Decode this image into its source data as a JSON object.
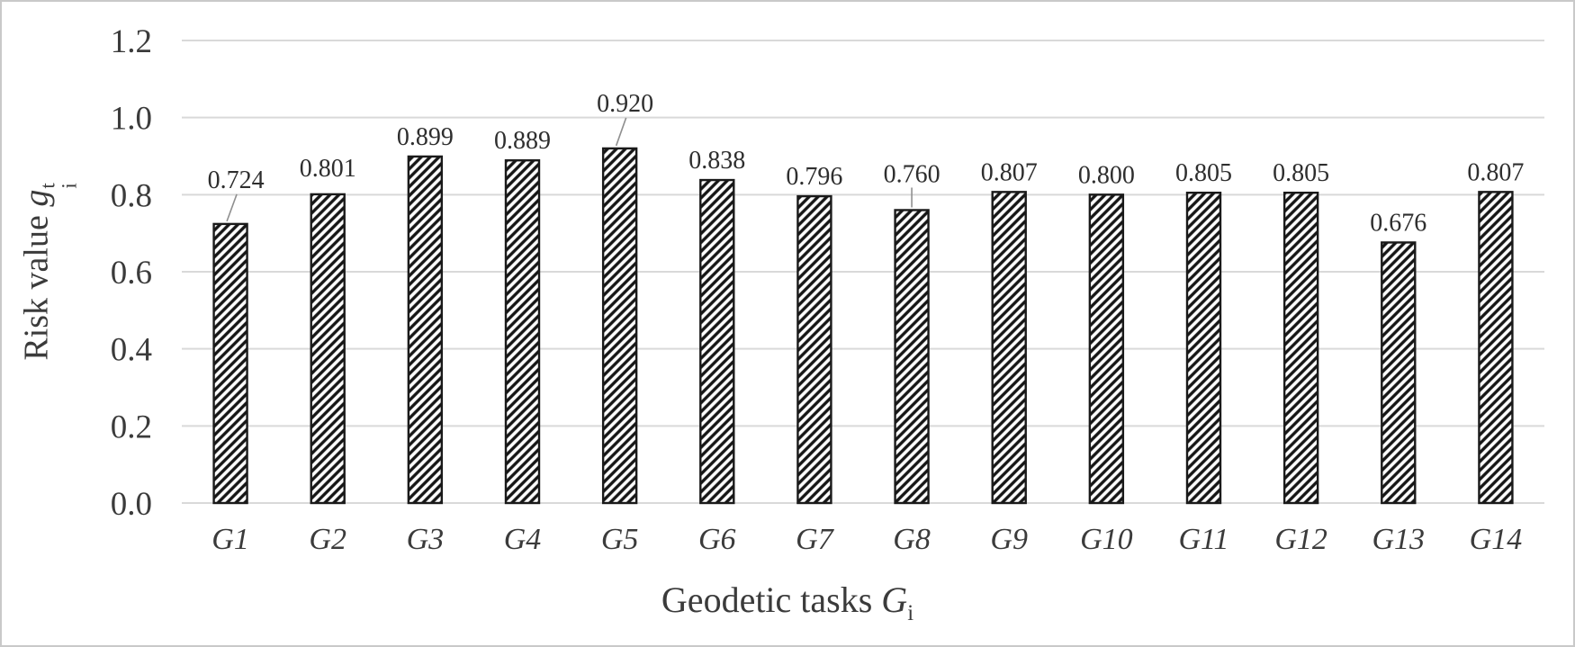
{
  "figure": {
    "background": "#ffffff",
    "border_color": "#c9c9c9",
    "gridline_color": "#d9d9d9",
    "axis_text_color": "#3b3b3b",
    "value_label_color": "#2e2e2e",
    "bar_outline_color": "#1a1a1a",
    "hatch_color": "#161616",
    "bar_fill_color": "#ffffff",
    "leader_line_color": "#8f8f8f"
  },
  "y_axis": {
    "title": {
      "prefix": "Risk value ",
      "variable": "g",
      "superscript": "t",
      "subscript": "i"
    },
    "tick_labels": [
      "1.2",
      "1.0",
      "0.8",
      "0.6",
      "0.4",
      "0.2",
      "0.0"
    ]
  },
  "x_axis": {
    "title": {
      "prefix": "Geodetic tasks ",
      "variable": "G",
      "subscript": "i"
    }
  },
  "chart_data": {
    "type": "bar",
    "title": "",
    "xlabel": "Geodetic tasks Gi",
    "ylabel": "Risk value gi^t",
    "categories": [
      "G1",
      "G2",
      "G3",
      "G4",
      "G5",
      "G6",
      "G7",
      "G8",
      "G9",
      "G10",
      "G11",
      "G12",
      "G13",
      "G14"
    ],
    "values": [
      0.724,
      0.801,
      0.899,
      0.889,
      0.92,
      0.838,
      0.796,
      0.76,
      0.807,
      0.8,
      0.805,
      0.805,
      0.676,
      0.807
    ],
    "value_labels": [
      "0.724",
      "0.801",
      "0.899",
      "0.889",
      "0.920",
      "0.838",
      "0.796",
      "0.760",
      "0.807",
      "0.800",
      "0.805",
      "0.805",
      "0.676",
      "0.807"
    ],
    "ylim": [
      0,
      1.2
    ],
    "ytick_step": 0.2,
    "grid": true,
    "legend": "none",
    "bar_style": "white fill with black diagonal hatch, black outline",
    "label_annotations": [
      {
        "index": 0,
        "extra_raise": 27,
        "leader": "diagonal"
      },
      {
        "index": 1,
        "extra_raise": 7,
        "leader": "none"
      },
      {
        "index": 4,
        "extra_raise": 28,
        "leader": "diagonal"
      },
      {
        "index": 7,
        "extra_raise": 18,
        "leader": "vertical"
      }
    ]
  }
}
